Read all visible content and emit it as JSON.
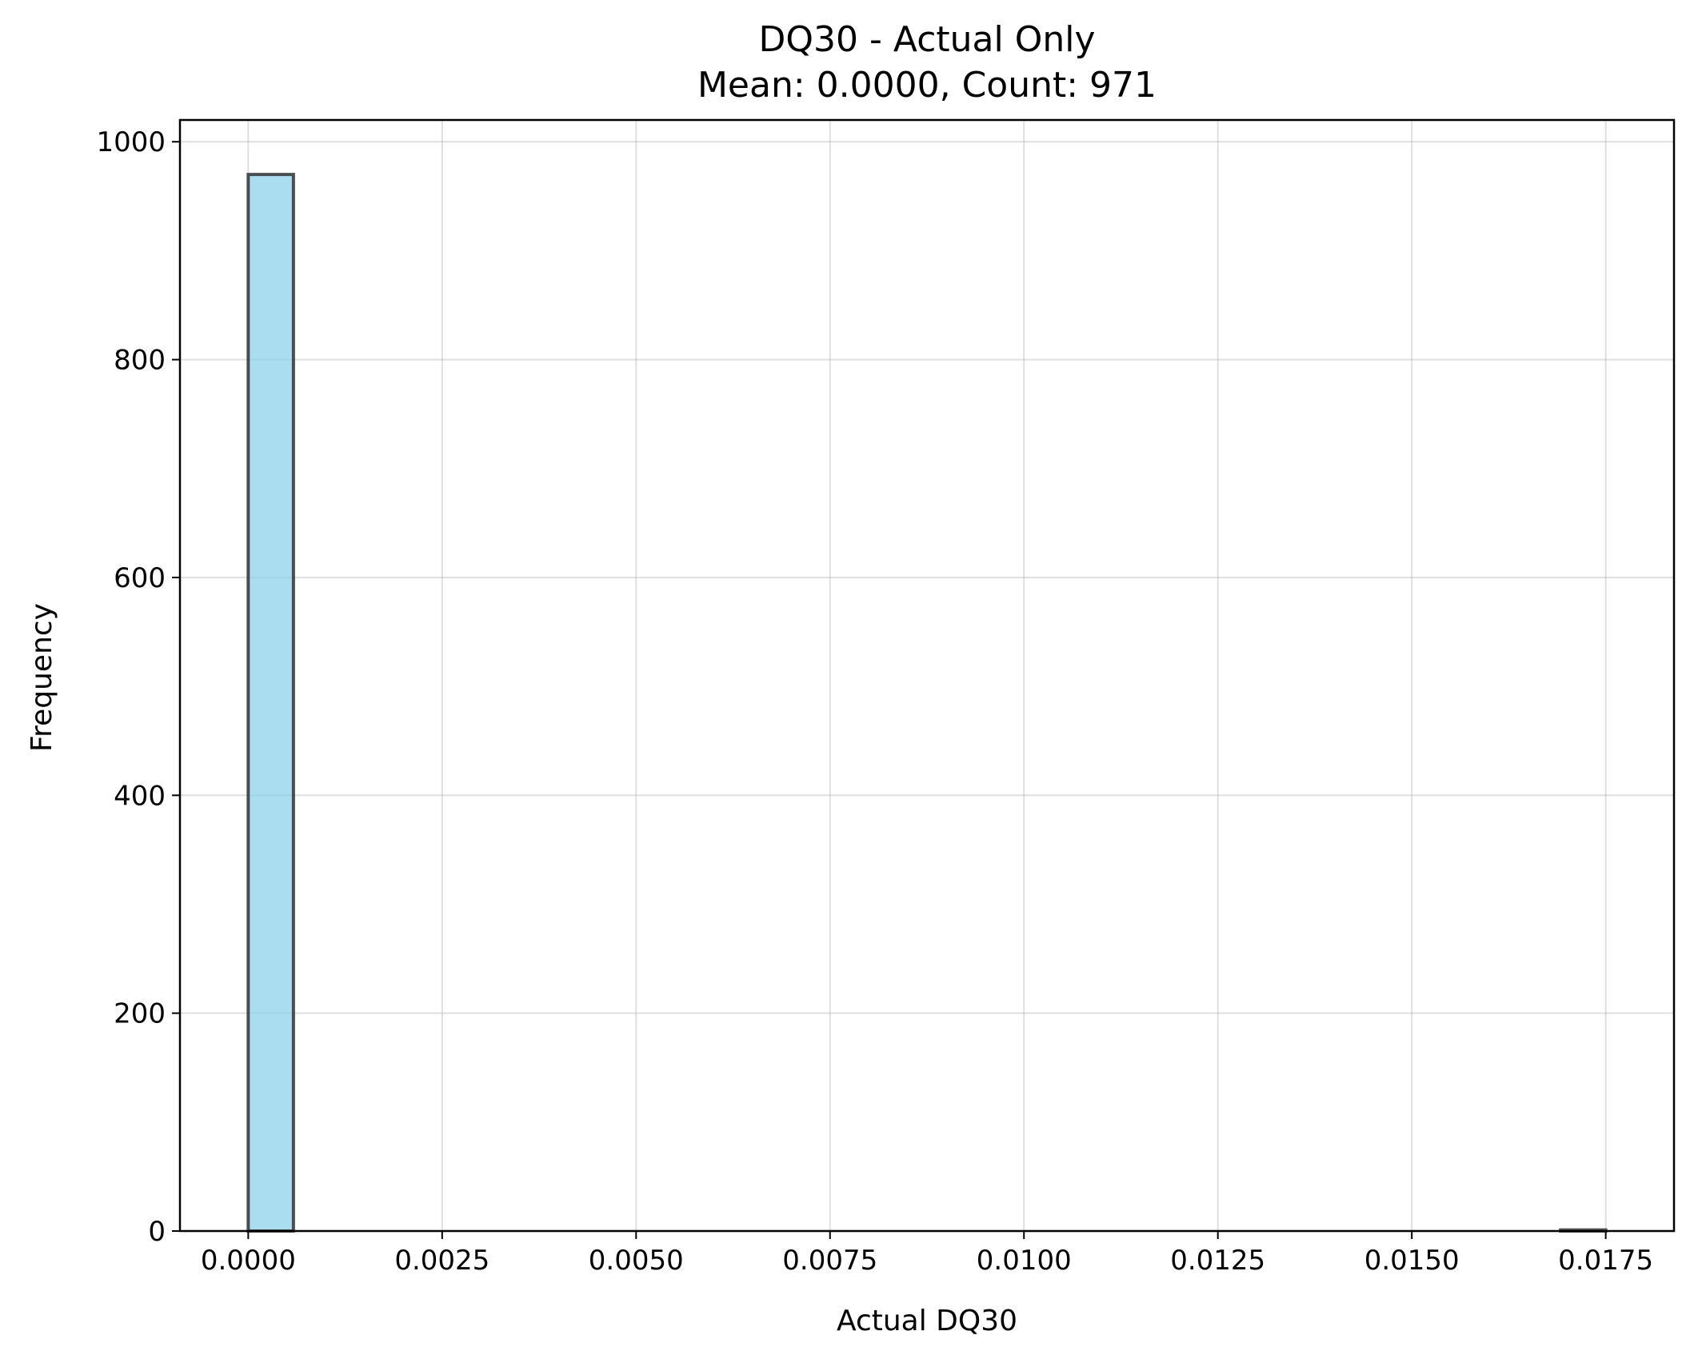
{
  "chart_data": {
    "type": "bar",
    "title": "DQ30 - Actual Only",
    "subtitle": "Mean: 0.0000, Count: 971",
    "xlabel": "Actual DQ30",
    "ylabel": "Frequency",
    "xlim": [
      -0.00088,
      0.01838
    ],
    "ylim": [
      0,
      1020
    ],
    "x_ticks": [
      0.0,
      0.0025,
      0.005,
      0.0075,
      0.01,
      0.0125,
      0.015,
      0.0175
    ],
    "x_tick_labels": [
      "0.0000",
      "0.0025",
      "0.0050",
      "0.0075",
      "0.0100",
      "0.0125",
      "0.0150",
      "0.0175"
    ],
    "y_ticks": [
      0,
      200,
      400,
      600,
      800,
      1000
    ],
    "y_tick_labels": [
      "0",
      "200",
      "400",
      "600",
      "800",
      "1000"
    ],
    "grid": true,
    "bin_edges": [
      0.0,
      0.000583,
      0.001167,
      0.00175,
      0.002333,
      0.002917,
      0.0035,
      0.004083,
      0.004667,
      0.00525,
      0.005833,
      0.006417,
      0.007,
      0.007583,
      0.008167,
      0.00875,
      0.009333,
      0.009917,
      0.0105,
      0.011083,
      0.011667,
      0.01225,
      0.012833,
      0.013417,
      0.014,
      0.014583,
      0.015167,
      0.01575,
      0.016333,
      0.016917,
      0.0175
    ],
    "values": [
      970,
      0,
      0,
      0,
      0,
      0,
      0,
      0,
      0,
      0,
      0,
      0,
      0,
      0,
      0,
      0,
      0,
      0,
      0,
      0,
      0,
      0,
      0,
      0,
      0,
      0,
      0,
      0,
      0,
      1
    ],
    "bar_color": "#87ceeb",
    "edge_color": "#000000"
  }
}
